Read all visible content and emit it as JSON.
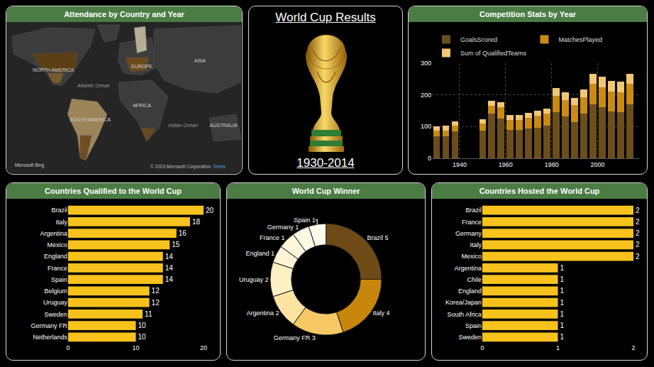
{
  "chart_data": [
    {
      "type": "bar",
      "title": "Competition Stats by Year",
      "stacked": true,
      "x": [
        1930,
        1934,
        1938,
        1950,
        1954,
        1958,
        1962,
        1966,
        1970,
        1974,
        1978,
        1982,
        1986,
        1990,
        1994,
        1998,
        2002,
        2006,
        2010,
        2014
      ],
      "series": [
        {
          "name": "GoalsScored",
          "color": "#6b4e1c",
          "values": [
            70,
            70,
            84,
            88,
            140,
            126,
            89,
            89,
            95,
            97,
            102,
            146,
            132,
            115,
            141,
            171,
            161,
            147,
            145,
            171
          ]
        },
        {
          "name": "MatchesPlayed",
          "color": "#c98b12",
          "values": [
            18,
            17,
            18,
            22,
            26,
            35,
            32,
            32,
            32,
            38,
            38,
            52,
            52,
            52,
            52,
            64,
            64,
            64,
            64,
            64
          ]
        },
        {
          "name": "Sum of QualifiedTeams",
          "color": "#f2c774",
          "values": [
            13,
            16,
            15,
            13,
            16,
            16,
            16,
            16,
            16,
            16,
            16,
            24,
            24,
            24,
            24,
            32,
            32,
            32,
            32,
            32
          ]
        }
      ],
      "xlim": [
        1928,
        2018
      ],
      "xticks": [
        1940,
        1960,
        1980,
        2000
      ],
      "ylim": [
        0,
        300
      ],
      "yticks": [
        0,
        100,
        200,
        300
      ],
      "grid": true,
      "legend": "top left"
    },
    {
      "type": "bar",
      "title": "Countries Qualified to the World Cup",
      "orientation": "horizontal",
      "categories": [
        "Brazil",
        "Italy",
        "Argentina",
        "Mexico",
        "England",
        "France",
        "Spain",
        "Belgium",
        "Uruguay",
        "Sweden",
        "Germany FR",
        "Netherlands"
      ],
      "values": [
        20,
        18,
        16,
        15,
        14,
        14,
        14,
        12,
        12,
        11,
        10,
        10
      ],
      "color": "#f7c21b",
      "xlim": [
        0,
        20
      ],
      "xticks": [
        0,
        10,
        20
      ],
      "data_labels": true
    },
    {
      "type": "pie",
      "title": "World Cup Winner",
      "categories": [
        "Brazil",
        "Italy",
        "Germany FR",
        "Argentina",
        "Uruguay",
        "England",
        "France",
        "Germany",
        "Spain"
      ],
      "values": [
        5,
        4,
        3,
        2,
        2,
        1,
        1,
        1,
        1
      ],
      "value_labels": [
        "Brazil 5",
        "Italy 4",
        "Germany FR 3",
        "Argentina 2",
        "Uruguay 2",
        "England 1",
        "France 1",
        "Germany 1",
        "Spain 1"
      ],
      "colors": [
        "#6e4b16",
        "#c8860c",
        "#f6c966",
        "#fde3a2",
        "#fff0c4",
        "#fff5d6",
        "#fff7dc",
        "#fff9e4",
        "#fffbec"
      ],
      "data_labels": true
    },
    {
      "type": "bar",
      "title": "Countries Hosted the World Cup",
      "orientation": "horizontal",
      "categories": [
        "Brazil",
        "France",
        "Germany",
        "Italy",
        "Mexico",
        "Argentina",
        "Chile",
        "England",
        "Korea/Japan",
        "South Africa",
        "Spain",
        "Sweden"
      ],
      "values": [
        2,
        2,
        2,
        2,
        2,
        1,
        1,
        1,
        1,
        1,
        1,
        1
      ],
      "color": "#f7c21b",
      "xlim": [
        0,
        2
      ],
      "xticks": [
        0,
        1,
        2
      ],
      "data_labels": true
    }
  ],
  "card": {
    "title": "World Cup Results",
    "subtitle": "1930-2014"
  },
  "map": {
    "title": "Attendance by Country and Year",
    "labels": [
      "NORTH AMERICA",
      "EUROPE",
      "ASIA",
      "Atlantic Ocean",
      "AFRICA",
      "SOUTH AMERICA",
      "Indian Ocean",
      "AUSTRALIA"
    ],
    "attribution": [
      "Microsoft Bing",
      "© 2023 Microsoft Corporation",
      "Terms"
    ]
  }
}
